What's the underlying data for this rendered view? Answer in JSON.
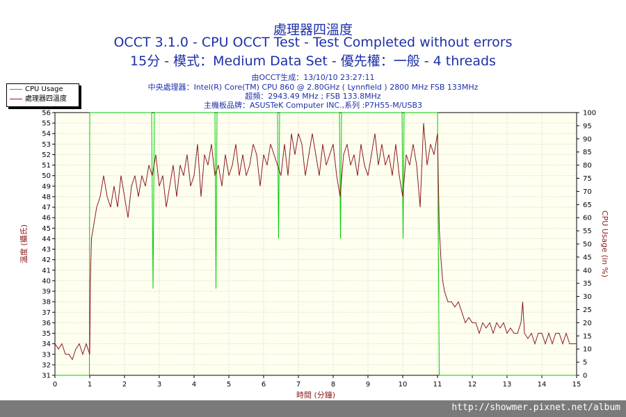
{
  "chart_data": {
    "type": "line",
    "title": "處理器四溫度",
    "subtitle": "OCCT 3.1.0 - CPU OCCT Test - Test Completed without errors",
    "subtitle2": "15分 - 模式：Medium Data Set - 優先權：一般 - 4 threads",
    "info_lines": [
      "由OCCT生成：13/10/10 23:27:11",
      "中央處理器：Intel(R) Core(TM) CPU 860 @ 2.80GHz ( Lynnfield ) 2800 MHz FSB 133MHz",
      "超頻：2943.49 MHz ; FSB 133.8MHz",
      "主機板品牌：ASUSTeK Computer INC.,系列 :P7H55-M/USB3"
    ],
    "xlabel": "時間 (分鐘)",
    "ylabel_left": "溫度 (攝氏)",
    "ylabel_right": "CPU Usage (in %)",
    "xlim": [
      0,
      15
    ],
    "ylim_left": [
      31,
      56
    ],
    "ylim_right": [
      0,
      100
    ],
    "x_ticks": [
      "0",
      "1",
      "2",
      "3",
      "4",
      "5",
      "6",
      "7",
      "8",
      "9",
      "10",
      "11",
      "12",
      "13",
      "14",
      "15"
    ],
    "y_left_ticks": [
      "31",
      "32",
      "33",
      "34",
      "35",
      "36",
      "37",
      "38",
      "39",
      "40",
      "41",
      "42",
      "43",
      "44",
      "45",
      "46",
      "47",
      "48",
      "49",
      "50",
      "51",
      "52",
      "53",
      "54",
      "55",
      "56"
    ],
    "y_right_ticks": [
      "0",
      "5",
      "10",
      "15",
      "20",
      "25",
      "30",
      "35",
      "40",
      "45",
      "50",
      "55",
      "60",
      "65",
      "70",
      "75",
      "80",
      "85",
      "90",
      "95",
      "100"
    ],
    "grid": true,
    "legend_position": "top-left",
    "series": [
      {
        "name": "CPU Usage",
        "axis": "right",
        "color": "#00cc00",
        "points": [
          [
            0,
            0
          ],
          [
            0.99,
            0
          ],
          [
            1.0,
            100
          ],
          [
            2.78,
            100
          ],
          [
            2.82,
            33
          ],
          [
            2.86,
            100
          ],
          [
            4.6,
            100
          ],
          [
            4.63,
            33
          ],
          [
            4.66,
            100
          ],
          [
            6.4,
            100
          ],
          [
            6.43,
            52
          ],
          [
            6.46,
            100
          ],
          [
            8.18,
            100
          ],
          [
            8.21,
            52
          ],
          [
            8.24,
            100
          ],
          [
            9.98,
            100
          ],
          [
            10.01,
            52
          ],
          [
            10.04,
            100
          ],
          [
            11.0,
            100
          ],
          [
            11.05,
            0
          ],
          [
            15,
            0
          ]
        ]
      },
      {
        "name": "處理器四溫度",
        "axis": "left",
        "color": "#8b1a1a",
        "points": [
          [
            0,
            34
          ],
          [
            0.1,
            33.5
          ],
          [
            0.2,
            34
          ],
          [
            0.3,
            33
          ],
          [
            0.4,
            33
          ],
          [
            0.5,
            32.5
          ],
          [
            0.6,
            33.5
          ],
          [
            0.7,
            34
          ],
          [
            0.8,
            33
          ],
          [
            0.9,
            34
          ],
          [
            1.0,
            33
          ],
          [
            1.02,
            40
          ],
          [
            1.05,
            44
          ],
          [
            1.1,
            45
          ],
          [
            1.2,
            47
          ],
          [
            1.3,
            48
          ],
          [
            1.4,
            50
          ],
          [
            1.5,
            48
          ],
          [
            1.6,
            47
          ],
          [
            1.7,
            49
          ],
          [
            1.8,
            47
          ],
          [
            1.9,
            50
          ],
          [
            2.0,
            48
          ],
          [
            2.1,
            46
          ],
          [
            2.2,
            49
          ],
          [
            2.3,
            50
          ],
          [
            2.4,
            48
          ],
          [
            2.5,
            50
          ],
          [
            2.6,
            49
          ],
          [
            2.7,
            51
          ],
          [
            2.8,
            50
          ],
          [
            2.9,
            52
          ],
          [
            3.0,
            49
          ],
          [
            3.1,
            50
          ],
          [
            3.2,
            47
          ],
          [
            3.3,
            49
          ],
          [
            3.4,
            51
          ],
          [
            3.5,
            48
          ],
          [
            3.6,
            51
          ],
          [
            3.7,
            50
          ],
          [
            3.8,
            52
          ],
          [
            3.9,
            49
          ],
          [
            4.0,
            50
          ],
          [
            4.1,
            53
          ],
          [
            4.2,
            48
          ],
          [
            4.3,
            52
          ],
          [
            4.4,
            51
          ],
          [
            4.5,
            53
          ],
          [
            4.6,
            50
          ],
          [
            4.7,
            51
          ],
          [
            4.8,
            49
          ],
          [
            4.9,
            52
          ],
          [
            5.0,
            50
          ],
          [
            5.1,
            51
          ],
          [
            5.2,
            53
          ],
          [
            5.3,
            50
          ],
          [
            5.4,
            52
          ],
          [
            5.5,
            50
          ],
          [
            5.6,
            51
          ],
          [
            5.7,
            53
          ],
          [
            5.8,
            52
          ],
          [
            5.9,
            49
          ],
          [
            6.0,
            52
          ],
          [
            6.1,
            51
          ],
          [
            6.2,
            53
          ],
          [
            6.3,
            52
          ],
          [
            6.4,
            51
          ],
          [
            6.5,
            50
          ],
          [
            6.6,
            53
          ],
          [
            6.7,
            50
          ],
          [
            6.8,
            54
          ],
          [
            6.9,
            52
          ],
          [
            7.0,
            54
          ],
          [
            7.1,
            53
          ],
          [
            7.2,
            50
          ],
          [
            7.3,
            52
          ],
          [
            7.4,
            54
          ],
          [
            7.5,
            52
          ],
          [
            7.6,
            50
          ],
          [
            7.7,
            53
          ],
          [
            7.8,
            51
          ],
          [
            7.9,
            52
          ],
          [
            8.0,
            53
          ],
          [
            8.1,
            50
          ],
          [
            8.2,
            48
          ],
          [
            8.3,
            52
          ],
          [
            8.4,
            53
          ],
          [
            8.5,
            51
          ],
          [
            8.6,
            52
          ],
          [
            8.7,
            50
          ],
          [
            8.8,
            53
          ],
          [
            8.9,
            51
          ],
          [
            9.0,
            50
          ],
          [
            9.1,
            52
          ],
          [
            9.2,
            54
          ],
          [
            9.3,
            51
          ],
          [
            9.4,
            53
          ],
          [
            9.5,
            51
          ],
          [
            9.6,
            52
          ],
          [
            9.7,
            50
          ],
          [
            9.8,
            53
          ],
          [
            9.9,
            50
          ],
          [
            10.0,
            48
          ],
          [
            10.1,
            52
          ],
          [
            10.2,
            51
          ],
          [
            10.3,
            53
          ],
          [
            10.4,
            51
          ],
          [
            10.5,
            47
          ],
          [
            10.6,
            55
          ],
          [
            10.7,
            51
          ],
          [
            10.8,
            53
          ],
          [
            10.9,
            52
          ],
          [
            11.0,
            54
          ],
          [
            11.05,
            45
          ],
          [
            11.1,
            42
          ],
          [
            11.15,
            40
          ],
          [
            11.2,
            39
          ],
          [
            11.3,
            38
          ],
          [
            11.4,
            38
          ],
          [
            11.5,
            37.5
          ],
          [
            11.6,
            38
          ],
          [
            11.7,
            37
          ],
          [
            11.8,
            36
          ],
          [
            11.9,
            36.5
          ],
          [
            12.0,
            36
          ],
          [
            12.1,
            36
          ],
          [
            12.2,
            35
          ],
          [
            12.3,
            36
          ],
          [
            12.4,
            35.5
          ],
          [
            12.5,
            36
          ],
          [
            12.6,
            35
          ],
          [
            12.7,
            36
          ],
          [
            12.8,
            35.5
          ],
          [
            12.9,
            36
          ],
          [
            13.0,
            35
          ],
          [
            13.1,
            35.5
          ],
          [
            13.2,
            35
          ],
          [
            13.3,
            35
          ],
          [
            13.4,
            36
          ],
          [
            13.45,
            38
          ],
          [
            13.5,
            35
          ],
          [
            13.6,
            34.5
          ],
          [
            13.7,
            35
          ],
          [
            13.8,
            34
          ],
          [
            13.9,
            35
          ],
          [
            14.0,
            35
          ],
          [
            14.1,
            34
          ],
          [
            14.2,
            35
          ],
          [
            14.3,
            34
          ],
          [
            14.4,
            35
          ],
          [
            14.5,
            35
          ],
          [
            14.6,
            34
          ],
          [
            14.7,
            35
          ],
          [
            14.8,
            34
          ],
          [
            14.9,
            34
          ],
          [
            15.0,
            34
          ]
        ]
      }
    ]
  },
  "watermark": "http://showmer.pixnet.net/album"
}
